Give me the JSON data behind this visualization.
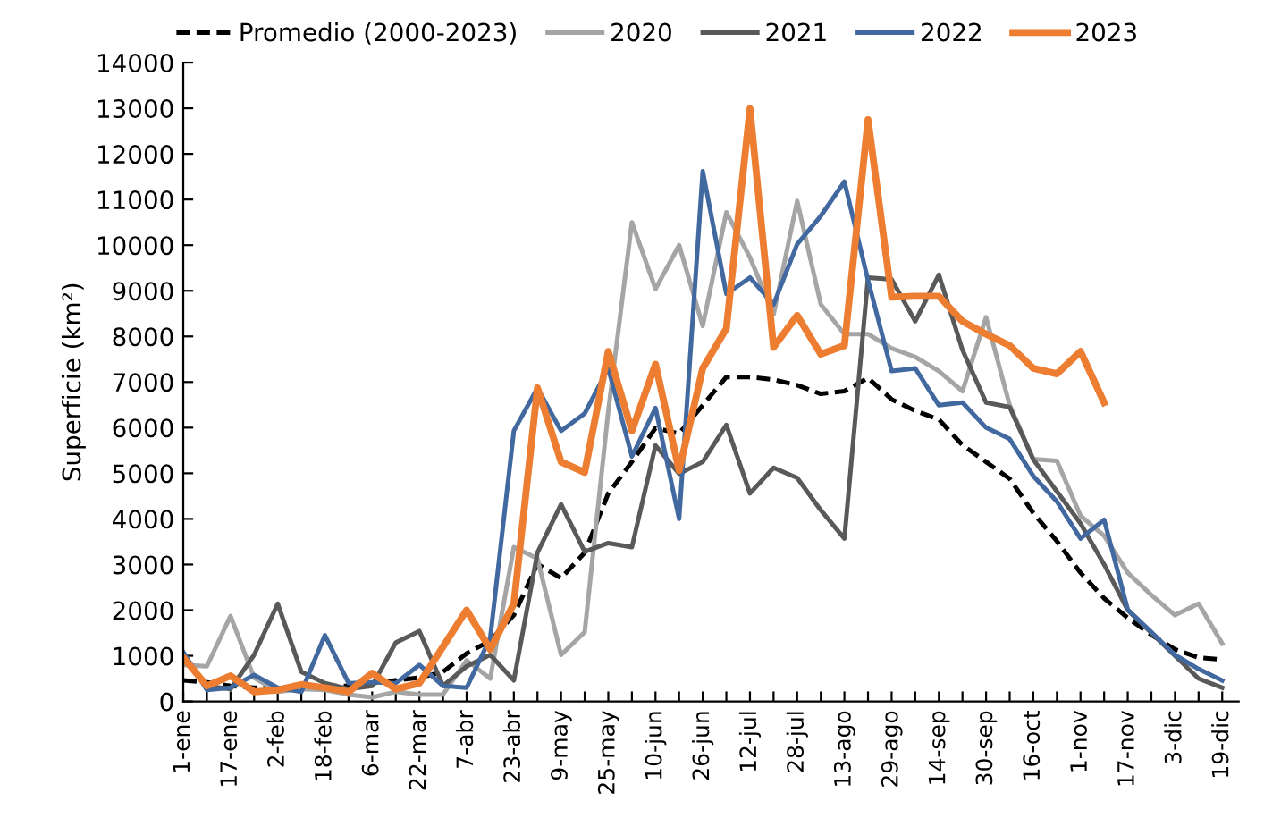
{
  "chart_data": {
    "type": "line",
    "ylabel": "Superficie (km²)",
    "categories": [
      "1-ene",
      null,
      "17-ene",
      null,
      "2-feb",
      null,
      "18-feb",
      null,
      "6-mar",
      null,
      "22-mar",
      null,
      "7-abr",
      null,
      "23-abr",
      null,
      "9-may",
      null,
      "25-may",
      null,
      "10-jun",
      null,
      "26-jun",
      null,
      "12-jul",
      null,
      "28-jul",
      null,
      "13-ago",
      null,
      "29-ago",
      null,
      "14-sep",
      null,
      "30-sep",
      null,
      "16-oct",
      null,
      "1-nov",
      null,
      "17-nov",
      null,
      "3-dic",
      null,
      "19-dic"
    ],
    "series": [
      {
        "name": "Promedio (2000-2023)",
        "color": "#000000",
        "line_style": "dashed",
        "values": [
          460,
          420,
          340,
          300,
          300,
          300,
          340,
          340,
          400,
          460,
          520,
          650,
          1050,
          1330,
          1890,
          3010,
          2700,
          3260,
          4560,
          5250,
          5990,
          5870,
          6490,
          7110,
          7110,
          7050,
          6930,
          6740,
          6800,
          7090,
          6620,
          6370,
          6180,
          5620,
          5250,
          4880,
          4130,
          3510,
          2820,
          2260,
          1830,
          1460,
          1140,
          960,
          920
        ]
      },
      {
        "name": "2020",
        "color": "#a5a5a5",
        "values": [
          800,
          770,
          1870,
          520,
          210,
          270,
          250,
          150,
          90,
          210,
          150,
          150,
          900,
          500,
          3380,
          3130,
          1020,
          1520,
          6370,
          10500,
          9040,
          10000,
          8230,
          10720,
          9730,
          8480,
          10970,
          8700,
          8050,
          8050,
          7740,
          7550,
          7240,
          6800,
          8420,
          6490,
          5310,
          5270,
          4070,
          3630,
          2820,
          2330,
          1890,
          2140,
          1270
        ]
      },
      {
        "name": "2021",
        "color": "#595959",
        "values": [
          1000,
          340,
          270,
          1020,
          2140,
          650,
          400,
          270,
          340,
          1290,
          1540,
          340,
          770,
          1020,
          460,
          3260,
          4320,
          3280,
          3470,
          3380,
          5610,
          4990,
          5250,
          6060,
          4560,
          5120,
          4900,
          4190,
          3570,
          9290,
          9250,
          8330,
          9350,
          7700,
          6550,
          6450,
          5300,
          4600,
          3900,
          3000,
          2000,
          1500,
          1000,
          500,
          300
        ]
      },
      {
        "name": "2022",
        "color": "#41689f",
        "values": [
          1080,
          250,
          300,
          580,
          300,
          210,
          1450,
          400,
          420,
          400,
          800,
          340,
          300,
          1390,
          5930,
          6870,
          5930,
          6310,
          7300,
          5370,
          6430,
          4000,
          11620,
          8930,
          9290,
          8700,
          10020,
          10640,
          11390,
          9230,
          7240,
          7300,
          6490,
          6550,
          6000,
          5750,
          4940,
          4380,
          3570,
          3980,
          2010,
          1520,
          1020,
          710,
          460
        ]
      },
      {
        "name": "2023",
        "color": "#ed7d31",
        "values": [
          960,
          340,
          560,
          210,
          250,
          370,
          300,
          210,
          620,
          270,
          400,
          1200,
          2000,
          1140,
          2140,
          6870,
          5250,
          5020,
          7670,
          5930,
          7390,
          5060,
          7300,
          8170,
          12990,
          7760,
          8460,
          7610,
          7800,
          12750,
          8860,
          8880,
          8880,
          8330,
          8050,
          7800,
          7300,
          7180,
          7670,
          6550,
          null,
          null,
          null,
          null,
          null
        ]
      }
    ],
    "ylim": [
      0,
      14000
    ],
    "yticks": [
      0,
      1000,
      2000,
      3000,
      4000,
      5000,
      6000,
      7000,
      8000,
      9000,
      10000,
      11000,
      12000,
      13000,
      14000
    ],
    "legend": "top",
    "grid": false
  }
}
